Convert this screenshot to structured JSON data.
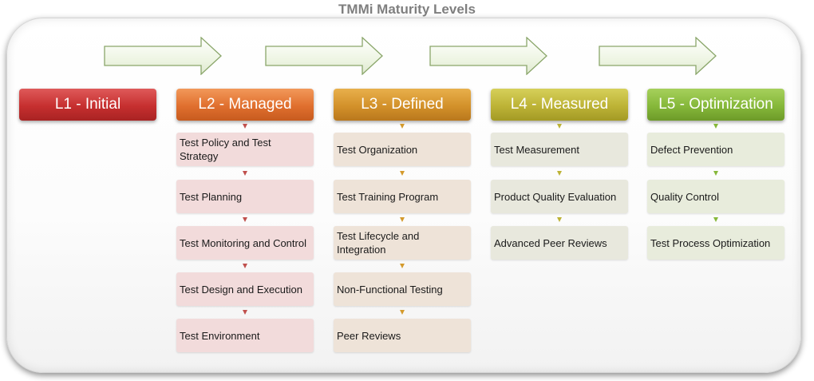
{
  "title": "TMMi Maturity Levels",
  "levels": [
    {
      "label": "L1 - Initial",
      "items": []
    },
    {
      "label": "L2 - Managed",
      "items": [
        "Test Policy and Test Strategy",
        "Test Planning",
        "Test Monitoring and Control",
        "Test Design and Execution",
        "Test Environment"
      ]
    },
    {
      "label": "L3 - Defined",
      "items": [
        "Test Organization",
        "Test Training Program",
        "Test Lifecycle and Integration",
        "Non-Functional Testing",
        "Peer Reviews"
      ]
    },
    {
      "label": "L4 - Measured",
      "items": [
        "Test Measurement",
        "Product Quality Evaluation",
        "Advanced Peer Reviews"
      ]
    },
    {
      "label": "L5 - Optimization",
      "items": [
        "Defect Prevention",
        "Quality Control",
        "Test Process Optimization"
      ]
    }
  ],
  "colors": {
    "l1": "#c62f2f",
    "l2": "#e06f2e",
    "l3": "#d3912a",
    "l4": "#bdb336",
    "l5": "#86b83a",
    "arrow_fill": "#eef5e3",
    "arrow_stroke": "#8aa66a"
  }
}
